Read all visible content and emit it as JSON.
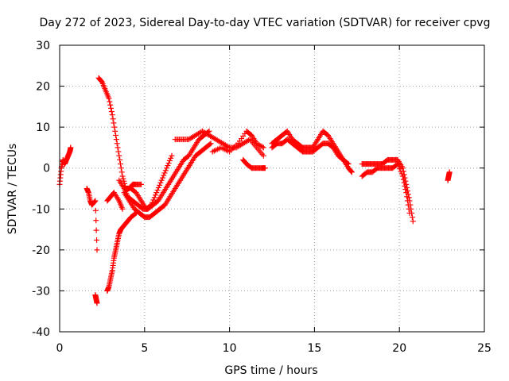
{
  "chart_data": {
    "type": "scatter",
    "title": "Day 272 of 2023, Sidereal Day-to-day VTEC variation (SDTVAR) for receiver cpvg",
    "xlabel": "GPS time / hours",
    "ylabel": "SDTVAR / TECUs",
    "xlim": [
      0,
      25
    ],
    "ylim": [
      -40,
      30
    ],
    "xticks": [
      0,
      5,
      10,
      15,
      20,
      25
    ],
    "yticks": [
      -40,
      -30,
      -20,
      -10,
      0,
      10,
      20,
      30
    ],
    "grid": true,
    "marker": "+",
    "color": "#ff0000",
    "series": [
      {
        "name": "early-a",
        "x": [
          0.0,
          0.1,
          0.2,
          0.3,
          0.4,
          0.5,
          0.6,
          0.65
        ],
        "y": [
          -4,
          0,
          2,
          1,
          2,
          3,
          4,
          5
        ]
      },
      {
        "name": "early-b",
        "x": [
          1.6,
          1.7,
          1.8,
          1.9,
          2.1,
          2.2
        ],
        "y": [
          -5,
          -6,
          -8,
          -9,
          -8,
          -20
        ]
      },
      {
        "name": "low-isolated",
        "x": [
          2.1,
          2.15,
          2.2
        ],
        "y": [
          -31,
          -32,
          -33
        ]
      },
      {
        "name": "descending-arc",
        "x": [
          2.3,
          2.5,
          2.7,
          2.9,
          3.1,
          3.3,
          3.5,
          3.7,
          3.9,
          4.1,
          4.3,
          4.5,
          4.8
        ],
        "y": [
          22,
          21,
          19,
          17,
          13,
          8,
          3,
          -2,
          -5,
          -5,
          -4,
          -4,
          -4
        ]
      },
      {
        "name": "rising-arc",
        "x": [
          2.8,
          2.9,
          3.0,
          3.1,
          3.2,
          3.3,
          3.4,
          3.5,
          3.6,
          3.8,
          4.0,
          4.2,
          4.5
        ],
        "y": [
          -30,
          -29,
          -27,
          -25,
          -22,
          -20,
          -18,
          -16,
          -15,
          -14,
          -13,
          -12,
          -11
        ]
      },
      {
        "name": "left-mid",
        "x": [
          2.8,
          3.0,
          3.2,
          3.5,
          3.7
        ],
        "y": [
          -8,
          -7,
          -6,
          -8,
          -10
        ]
      },
      {
        "name": "dip-a",
        "x": [
          3.5,
          3.8,
          4.0,
          4.3,
          4.6,
          4.9,
          5.2,
          5.5,
          5.8,
          6.1,
          6.4,
          6.7,
          7.0,
          7.3,
          7.6,
          7.9,
          8.2,
          8.5,
          8.8
        ],
        "y": [
          -3,
          -5,
          -7,
          -8,
          -9,
          -10,
          -10,
          -9,
          -8,
          -6,
          -4,
          -2,
          0,
          2,
          3,
          5,
          7,
          8,
          9
        ]
      },
      {
        "name": "dip-b",
        "x": [
          3.8,
          4.1,
          4.4,
          4.7,
          5.0,
          5.3,
          5.6,
          5.9,
          6.2,
          6.5,
          6.8,
          7.1,
          7.4,
          7.7,
          8.0,
          8.3,
          8.6,
          8.9
        ],
        "y": [
          -6,
          -8,
          -10,
          -11,
          -12,
          -12,
          -11,
          -10,
          -9,
          -7,
          -5,
          -3,
          -1,
          1,
          3,
          4,
          5,
          6
        ]
      },
      {
        "name": "dip-c",
        "x": [
          4.2,
          4.5,
          4.8,
          5.1,
          5.4,
          5.7,
          6.0,
          6.3,
          6.6
        ],
        "y": [
          -5,
          -6,
          -8,
          -10,
          -9,
          -6,
          -3,
          0,
          3
        ]
      },
      {
        "name": "hump-a",
        "x": [
          6.8,
          7.2,
          7.6,
          8.0,
          8.4,
          8.8,
          9.2,
          9.6,
          10.0,
          10.4,
          10.8,
          11.2,
          11.6,
          12.0
        ],
        "y": [
          7,
          7,
          7,
          8,
          9,
          8,
          7,
          6,
          5,
          5,
          6,
          7,
          5,
          3
        ]
      },
      {
        "name": "hump-b",
        "x": [
          9.0,
          9.5,
          10.0,
          10.5,
          11.0,
          11.3,
          11.6,
          12.0
        ],
        "y": [
          4,
          5,
          4,
          6,
          9,
          8,
          6,
          5
        ]
      },
      {
        "name": "dip-d",
        "x": [
          10.8,
          11.0,
          11.3,
          11.6,
          11.9,
          12.1
        ],
        "y": [
          2,
          1,
          0,
          0,
          0,
          0
        ]
      },
      {
        "name": "center-a",
        "x": [
          12.5,
          12.8,
          13.1,
          13.4,
          13.7,
          14.0,
          14.3,
          14.6,
          14.9,
          15.2,
          15.5,
          15.8,
          16.1,
          16.4,
          16.7,
          17.0,
          17.2
        ],
        "y": [
          6,
          7,
          8,
          9,
          7,
          6,
          5,
          5,
          5,
          7,
          9,
          8,
          6,
          4,
          2,
          0,
          -1
        ]
      },
      {
        "name": "center-b",
        "x": [
          12.5,
          12.8,
          13.1,
          13.4,
          13.7,
          14.0,
          14.3,
          14.6,
          14.9,
          15.2,
          15.5,
          15.8,
          16.1,
          16.4,
          16.7,
          17.0
        ],
        "y": [
          5,
          6,
          6,
          7,
          6,
          5,
          4,
          4,
          4,
          5,
          6,
          6,
          5,
          3,
          2,
          1
        ]
      },
      {
        "name": "right-a",
        "x": [
          17.8,
          18.1,
          18.4,
          18.7,
          19.0,
          19.3,
          19.6,
          19.9,
          20.2,
          20.4,
          20.6,
          20.8
        ],
        "y": [
          1,
          1,
          1,
          1,
          1,
          2,
          2,
          2,
          0,
          -4,
          -8,
          -13
        ]
      },
      {
        "name": "right-b",
        "x": [
          17.8,
          18.1,
          18.4,
          18.7,
          19.0,
          19.3,
          19.6,
          19.9,
          20.2,
          20.4,
          20.6
        ],
        "y": [
          -2,
          -1,
          -1,
          0,
          0,
          0,
          0,
          1,
          -2,
          -6,
          -11
        ]
      },
      {
        "name": "late",
        "x": [
          22.85,
          22.9,
          22.95
        ],
        "y": [
          -3,
          -2,
          -1
        ]
      }
    ]
  }
}
